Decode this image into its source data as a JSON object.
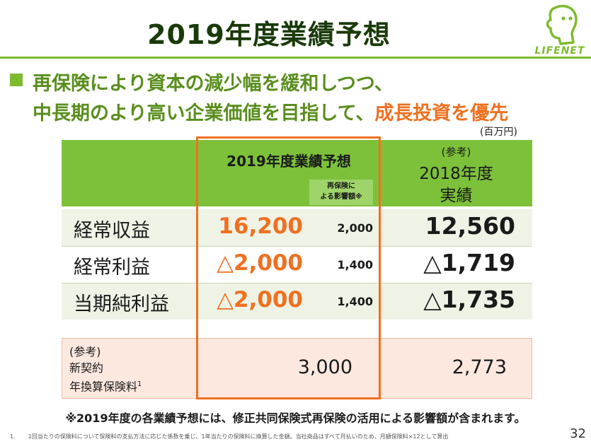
{
  "slide": {
    "title": "2019年度業績予想",
    "logo_text": "LIFENET",
    "bullet": {
      "line1": "再保険により資本の減少幅を緩和しつつ、",
      "line2_prefix": "中長期のより高い企業価値を目指して、",
      "line2_highlight": "成長投資を優先"
    },
    "unit": "(百万円)",
    "page_number": "32"
  },
  "table": {
    "header": {
      "forecast": "2019年度業績予想",
      "reinsurance_line1": "再保険に",
      "reinsurance_line2": "よる影響額※",
      "ref_small": "(参考)",
      "ref_year": "2018年度",
      "ref_result": "実績"
    },
    "rows": [
      {
        "label": "経常収益",
        "forecast": "16,200",
        "reinsurance": "2,000",
        "prev": "12,560"
      },
      {
        "label": "経常利益",
        "forecast": "△2,000",
        "reinsurance": "1,400",
        "prev": "△1,719"
      },
      {
        "label": "当期純利益",
        "forecast": "△2,000",
        "reinsurance": "1,400",
        "prev": "△1,735"
      }
    ],
    "reference": {
      "label_line1": "(参考)",
      "label_line2": "新契約",
      "label_line3": "年換算保険料",
      "label_sup": "1",
      "forecast": "3,000",
      "prev": "2,773"
    }
  },
  "note": "※2019年度の各業績予想には、修正共同保険式再保険の活用による影響額が含まれます。",
  "footnote": {
    "number": "1.",
    "text": "1回当たりの保険料について保険料の支払方法に応じた係数を乗じ、1年当たりの保険料に換算した金額。当社商品はすべて月払いのため、月額保険料×12として算出"
  },
  "colors": {
    "green_header": "#7dc13a",
    "green_text": "#5a8e1e",
    "orange_accent": "#f07020",
    "pink_box": "#fde8e0"
  }
}
